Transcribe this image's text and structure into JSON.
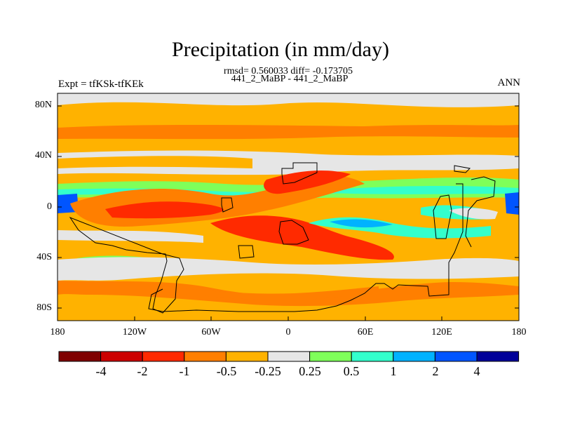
{
  "title": "Precipitation (in mm/day)",
  "subtitle": "rmsd= 0.560033 diff= -0.173705",
  "cases": "441_2_MaBP - 441_2_MaBP",
  "left_label": "Expt = tfKSk-tfKEk",
  "right_label": "ANN",
  "y_ticks": [
    "80N",
    "40N",
    "0",
    "40S",
    "80S"
  ],
  "x_ticks": [
    "180",
    "120W",
    "60W",
    "0",
    "60E",
    "120E",
    "180"
  ],
  "colorbar": {
    "colors": [
      "#7f0000",
      "#cc0000",
      "#ff2a00",
      "#ff7f00",
      "#ffb200",
      "#e6e6e6",
      "#7fff5a",
      "#33ffcc",
      "#00b2ff",
      "#0055ff",
      "#000099"
    ],
    "labels": [
      "-4",
      "-2",
      "-1",
      "-0.5",
      "-0.25",
      "0.25",
      "0.5",
      "1",
      "2",
      "4"
    ]
  }
}
